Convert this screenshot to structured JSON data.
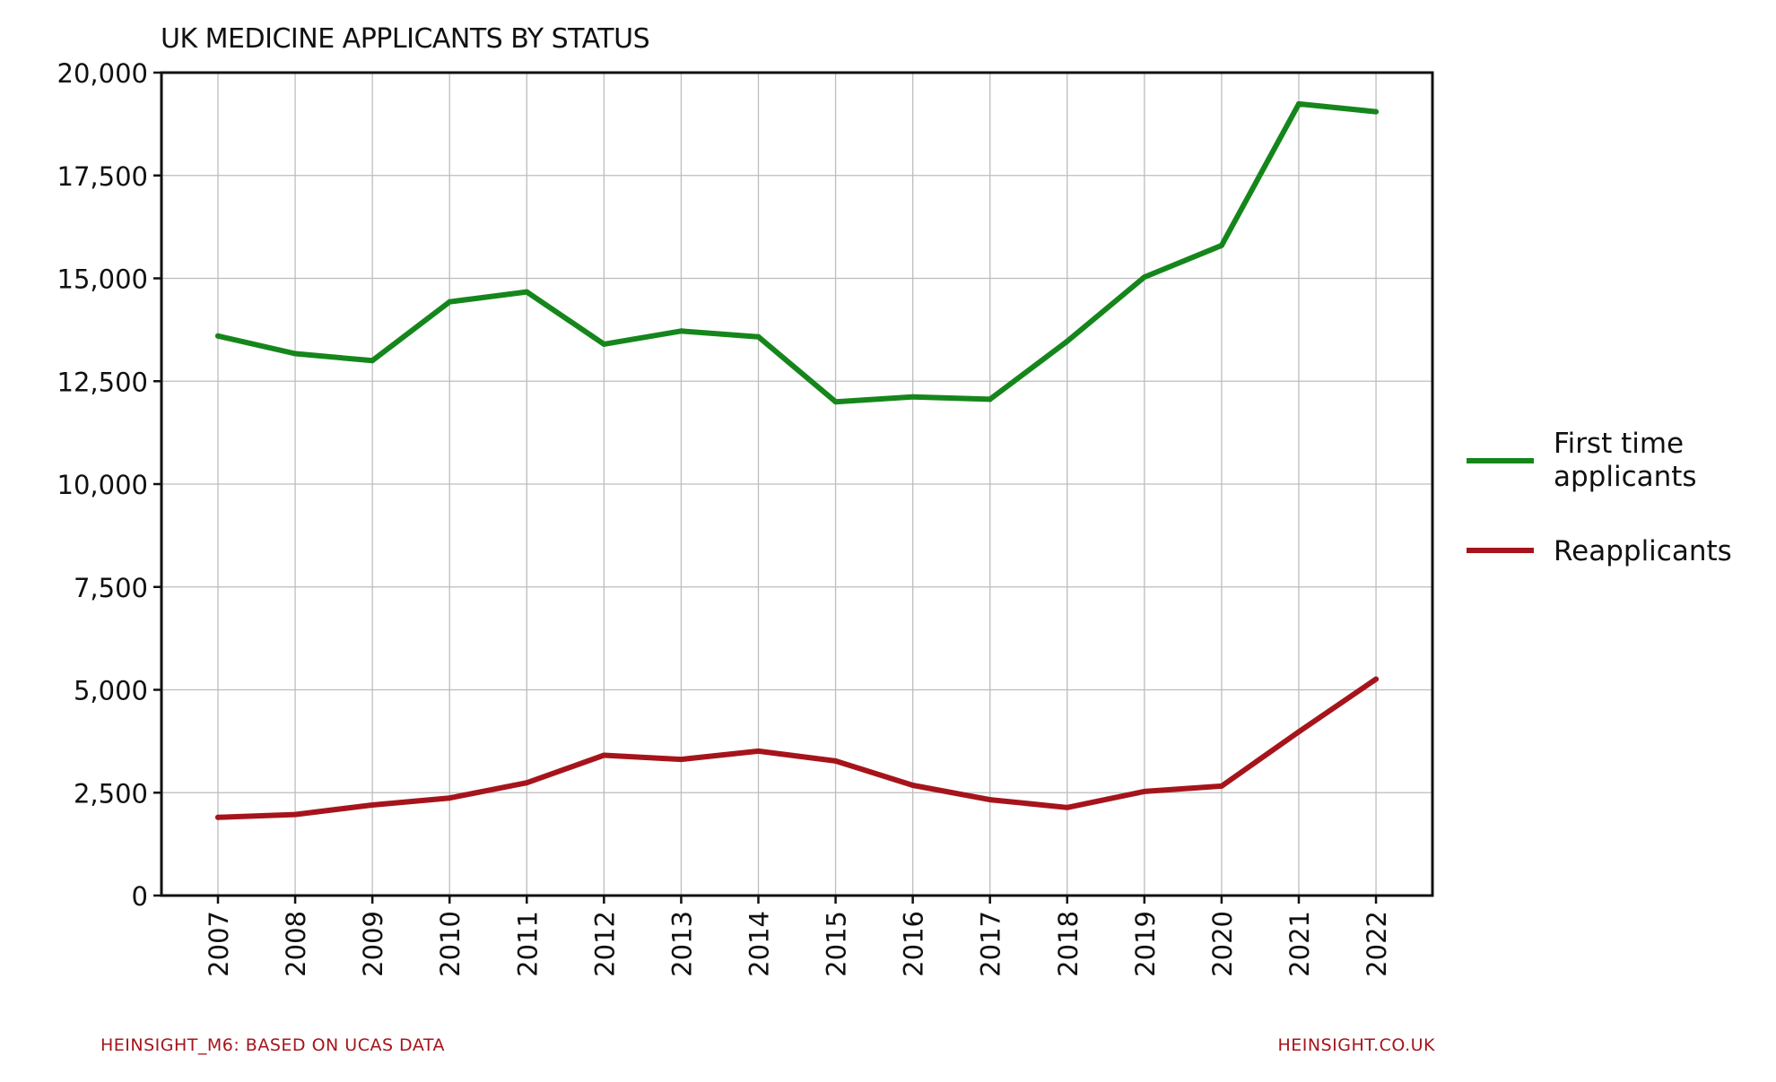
{
  "chart_data": {
    "type": "line",
    "title": "UK MEDICINE APPLICANTS BY STATUS",
    "xlabel": "",
    "ylabel": "",
    "categories": [
      "2007",
      "2008",
      "2009",
      "2010",
      "2011",
      "2012",
      "2013",
      "2014",
      "2015",
      "2016",
      "2017",
      "2018",
      "2019",
      "2020",
      "2021",
      "2022"
    ],
    "ylim": [
      0,
      20000
    ],
    "yticks": [
      0,
      2500,
      5000,
      7500,
      10000,
      12500,
      15000,
      17500,
      20000
    ],
    "ytick_labels": [
      "0",
      "2,500",
      "5,000",
      "7,500",
      "10,000",
      "12,500",
      "15,000",
      "17,500",
      "20,000"
    ],
    "grid": true,
    "legend_position": "right",
    "series": [
      {
        "name": "First time applicants",
        "legend_lines": [
          "First time",
          "applicants"
        ],
        "color": "#15861b",
        "values": [
          13600,
          13170,
          13000,
          14430,
          14670,
          13400,
          13720,
          13580,
          12000,
          12120,
          12060,
          13470,
          15030,
          15800,
          19240,
          19050
        ]
      },
      {
        "name": "Reapplicants",
        "legend_lines": [
          "Reapplicants"
        ],
        "color": "#a6141b",
        "values": [
          1900,
          1970,
          2200,
          2370,
          2740,
          3410,
          3310,
          3510,
          3270,
          2680,
          2330,
          2140,
          2530,
          2660,
          3980,
          5260
        ]
      }
    ]
  },
  "footer": {
    "left": "HEINSIGHT_M6: BASED ON UCAS DATA",
    "right": "HEINSIGHT.CO.UK",
    "color": "#a6141b"
  }
}
